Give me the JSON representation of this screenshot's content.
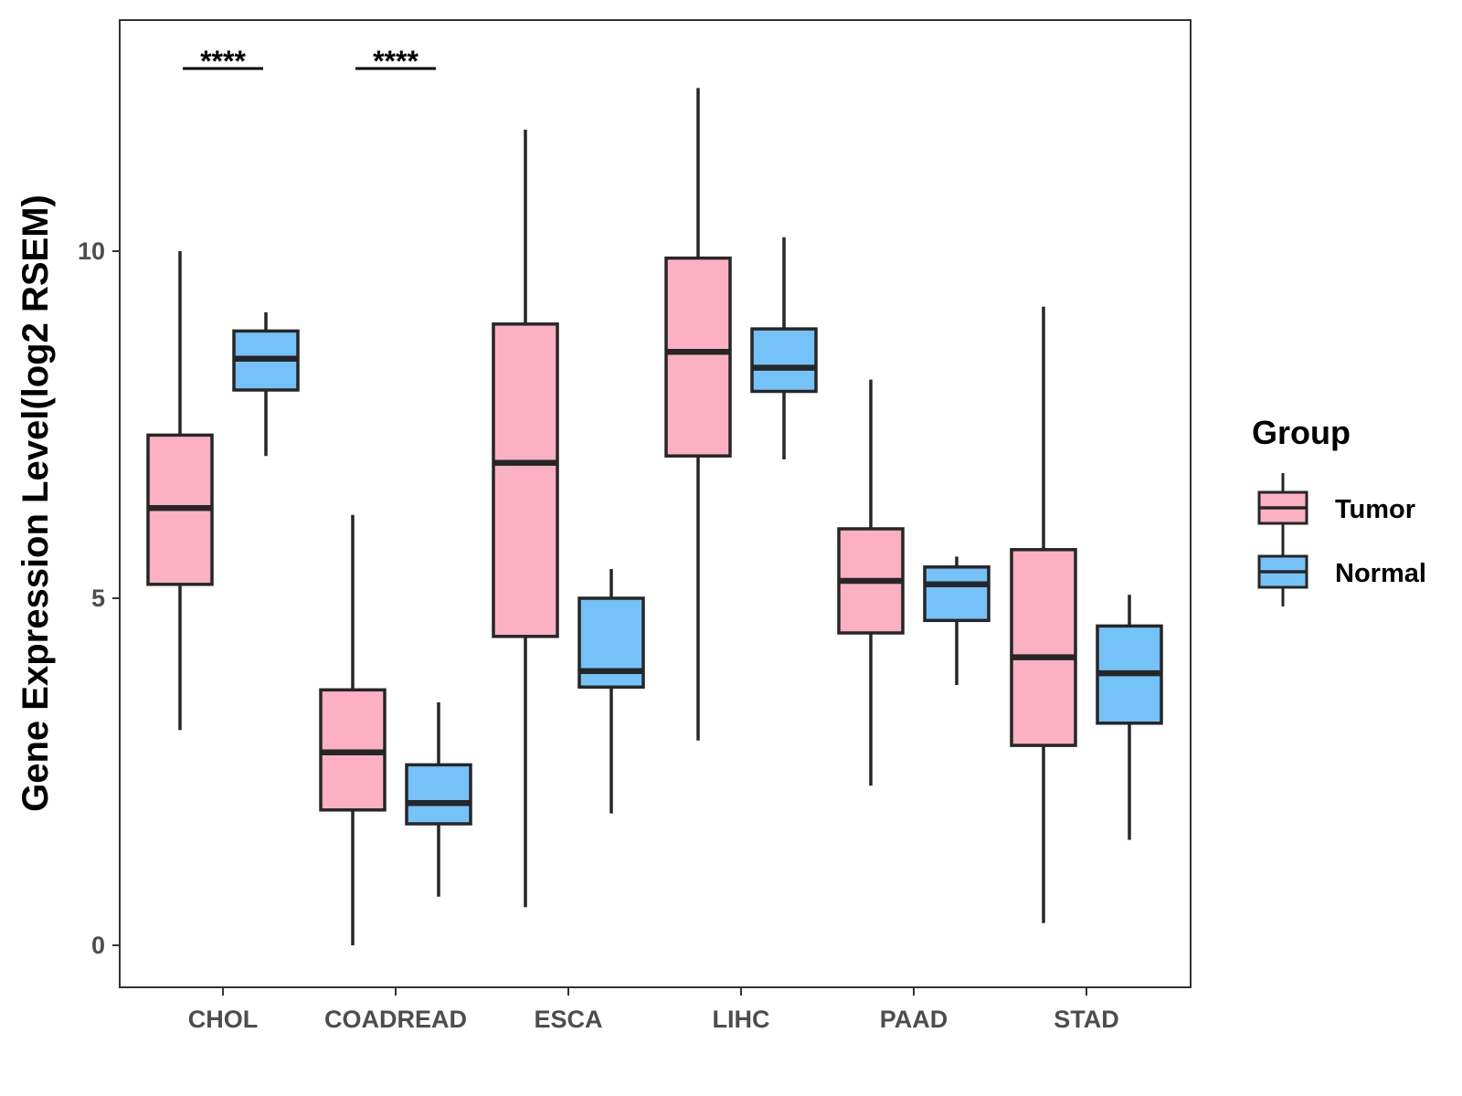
{
  "chart_data": {
    "type": "boxplot",
    "title": "",
    "xlabel": "",
    "ylabel": "Gene Expression Level(log2 RSEM)",
    "ylim": [
      -0.6,
      13.35
    ],
    "yticks": [
      0,
      5,
      10
    ],
    "ytick_labels": [
      "0",
      "5",
      "10"
    ],
    "grid": false,
    "legend_position": "right",
    "legend_title": "Group",
    "categories": [
      "CHOL",
      "COADREAD",
      "ESCA",
      "LIHC",
      "PAAD",
      "STAD"
    ],
    "series": [
      {
        "name": "Tumor",
        "color": "#FBB1C3",
        "boxes": [
          {
            "min": 3.1,
            "q1": 5.2,
            "median": 6.3,
            "q3": 7.35,
            "max": 10.0
          },
          {
            "min": 0.0,
            "q1": 1.95,
            "median": 2.78,
            "q3": 3.68,
            "max": 6.2
          },
          {
            "min": 0.55,
            "q1": 4.45,
            "median": 6.95,
            "q3": 8.95,
            "max": 11.75
          },
          {
            "min": 2.95,
            "q1": 7.05,
            "median": 8.55,
            "q3": 9.9,
            "max": 12.35
          },
          {
            "min": 2.3,
            "q1": 4.5,
            "median": 5.25,
            "q3": 6.0,
            "max": 8.15
          },
          {
            "min": 0.32,
            "q1": 2.88,
            "median": 4.15,
            "q3": 5.7,
            "max": 9.2
          }
        ]
      },
      {
        "name": "Normal",
        "color": "#74C2F8",
        "boxes": [
          {
            "min": 7.05,
            "q1": 8.0,
            "median": 8.45,
            "q3": 8.85,
            "max": 9.12
          },
          {
            "min": 0.7,
            "q1": 1.75,
            "median": 2.05,
            "q3": 2.6,
            "max": 3.5
          },
          {
            "min": 1.9,
            "q1": 3.72,
            "median": 3.95,
            "q3": 5.0,
            "max": 5.42
          },
          {
            "min": 7.0,
            "q1": 7.98,
            "median": 8.32,
            "q3": 8.88,
            "max": 10.2
          },
          {
            "min": 3.75,
            "q1": 4.68,
            "median": 5.2,
            "q3": 5.45,
            "max": 5.6
          },
          {
            "min": 1.52,
            "q1": 3.2,
            "median": 3.92,
            "q3": 4.6,
            "max": 5.05
          }
        ]
      }
    ],
    "significance": [
      {
        "category": "CHOL",
        "label": "****"
      },
      {
        "category": "COADREAD",
        "label": "****"
      }
    ]
  }
}
